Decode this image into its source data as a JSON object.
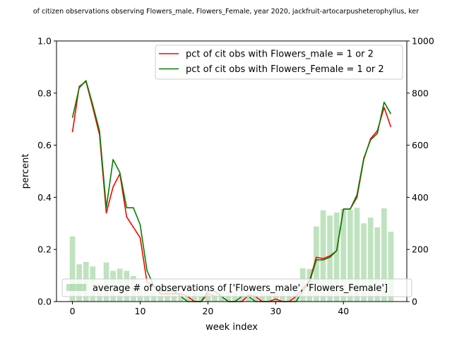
{
  "chart_data": {
    "type": "line",
    "title": "of citizen observations observing Flowers_male, Flowers_Female, year 2020, jackfruit-artocarpusheterophyllus, ker",
    "xlabel": "week index",
    "ylabel": "percent",
    "xlim": [
      -2.35,
      49.35
    ],
    "ylim": [
      0,
      1.0
    ],
    "y2lim": [
      0,
      1000
    ],
    "x_ticks": [
      0,
      10,
      20,
      30,
      40
    ],
    "y_ticks": [
      "0.0",
      "0.2",
      "0.4",
      "0.6",
      "0.8",
      "1.0"
    ],
    "y2_ticks": [
      "0",
      "200",
      "400",
      "600",
      "800",
      "1000"
    ],
    "x": [
      0,
      1,
      2,
      3,
      4,
      5,
      6,
      7,
      8,
      9,
      10,
      11,
      12,
      13,
      14,
      15,
      16,
      17,
      18,
      19,
      20,
      21,
      22,
      23,
      24,
      25,
      26,
      27,
      28,
      29,
      30,
      31,
      32,
      33,
      34,
      35,
      36,
      37,
      38,
      39,
      40,
      41,
      42,
      43,
      44,
      45,
      46,
      47
    ],
    "series": [
      {
        "name": "pct of cit obs with Flowers_male = 1 or 2",
        "color": "#ff0000",
        "values": [
          0.65,
          0.825,
          0.845,
          0.745,
          0.64,
          0.34,
          0.44,
          0.49,
          0.325,
          0.285,
          0.245,
          0.075,
          0.06,
          0.03,
          0.03,
          0.03,
          0.03,
          0.02,
          0.0,
          0.0,
          0.03,
          0.02,
          0.02,
          0.0,
          0.0,
          0.0,
          0.025,
          0.02,
          0.0,
          0.0,
          0.01,
          0.0,
          0.0,
          0.02,
          0.05,
          0.08,
          0.17,
          0.165,
          0.175,
          0.195,
          0.355,
          0.355,
          0.4,
          0.545,
          0.625,
          0.655,
          0.745,
          0.67
        ]
      },
      {
        "name": "pct of cit obs with Flowers_Female = 1 or 2",
        "color": "#008000",
        "values": [
          0.705,
          0.82,
          0.848,
          0.755,
          0.655,
          0.36,
          0.545,
          0.495,
          0.36,
          0.36,
          0.295,
          0.12,
          0.06,
          0.04,
          0.04,
          0.04,
          0.02,
          0.0,
          0.0,
          0.0,
          0.04,
          0.04,
          0.02,
          0.0,
          0.0,
          0.02,
          0.02,
          0.0,
          0.0,
          0.0,
          0.0,
          0.0,
          0.0,
          0.0,
          0.04,
          0.075,
          0.16,
          0.16,
          0.17,
          0.195,
          0.355,
          0.355,
          0.41,
          0.55,
          0.62,
          0.645,
          0.765,
          0.72
        ]
      }
    ],
    "bars": {
      "name": "average # of observations of ['Flowers_male', 'Flowers_Female']",
      "color": "#2ca02c",
      "axis": "right",
      "values": [
        250,
        143,
        152,
        135,
        70,
        150,
        118,
        126,
        118,
        98,
        58,
        40,
        40,
        40,
        40,
        40,
        40,
        40,
        40,
        40,
        40,
        40,
        40,
        40,
        40,
        40,
        40,
        40,
        40,
        40,
        40,
        40,
        40,
        40,
        128,
        125,
        288,
        350,
        330,
        342,
        355,
        352,
        360,
        300,
        322,
        285,
        358,
        268
      ]
    },
    "legend_upper": "top-right",
    "legend_lower": "bottom"
  }
}
